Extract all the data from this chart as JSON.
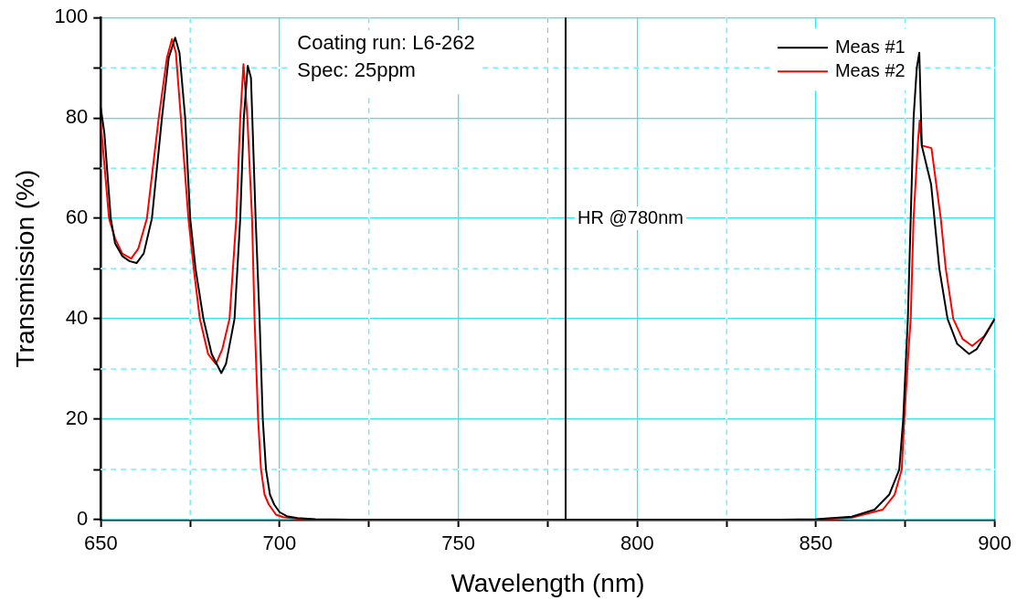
{
  "chart_data": {
    "type": "line",
    "xlabel": "Wavelength (nm)",
    "ylabel": "Transmission (%)",
    "xlim": [
      650,
      900
    ],
    "xticks": [
      650,
      {
        "value": 675,
        "label": null
      },
      700,
      {
        "value": 725,
        "label": null
      },
      750,
      {
        "value": 775,
        "label": null
      },
      800,
      {
        "value": 825,
        "label": null
      },
      850,
      {
        "value": 875,
        "label": null
      },
      900
    ],
    "ylim": [
      0,
      100
    ],
    "yticks": [
      0,
      {
        "value": 10,
        "label": null
      },
      20,
      {
        "value": 30,
        "label": null
      },
      40,
      {
        "value": 50,
        "label": null
      },
      60,
      {
        "value": 70,
        "label": null
      },
      80,
      {
        "value": 90,
        "label": null
      },
      100
    ],
    "grid": true,
    "legend": "top right",
    "marker": "none",
    "line_style": "solid",
    "annotations": [
      "Coating run: L6-262",
      "Spec: 25ppm"
    ],
    "ref_lines": [
      {
        "axis": "x",
        "value": 780,
        "label": "HR @780nm",
        "color": "#000000"
      }
    ],
    "series": [
      {
        "name": "Meas #1",
        "color": "#000000",
        "x": [
          650,
          651,
          652.8,
          654,
          656,
          658,
          660,
          662,
          664.3,
          667.1,
          669,
          670.8,
          672,
          673.6,
          675,
          676.5,
          678.7,
          681,
          683.7,
          685,
          687.4,
          689,
          690,
          691.1,
          692,
          693.3,
          694.4,
          695.3,
          696.2,
          697.3,
          698.5,
          700,
          702,
          705,
          710,
          720,
          750,
          800,
          840,
          850,
          860,
          866.4,
          870.5,
          873.3,
          874.4,
          875.7,
          876.5,
          877.3,
          878.2,
          878.9,
          879.6,
          882.2,
          884.5,
          886.8,
          889.5,
          892.8,
          895,
          898,
          900
        ],
        "values": [
          82,
          77,
          60,
          55,
          52.5,
          51.5,
          51.1,
          53,
          60,
          80,
          92,
          96,
          93,
          80,
          60,
          50,
          40,
          33,
          29.2,
          31,
          40,
          60,
          80,
          90.4,
          88,
          60,
          40,
          20,
          10,
          5,
          3,
          1.5,
          0.7,
          0.3,
          0.1,
          0,
          0,
          0,
          0,
          0.1,
          0.6,
          2,
          5,
          10,
          20,
          40,
          60,
          80,
          90,
          93,
          74.5,
          66.8,
          50,
          40,
          35,
          33,
          34,
          37.5,
          40
        ]
      },
      {
        "name": "Meas #2",
        "color": "#ff0000",
        "x": [
          650,
          652.3,
          654,
          656,
          658.5,
          660.5,
          662.9,
          666.2,
          668.5,
          669.9,
          671,
          672.4,
          674.5,
          676,
          677.7,
          680,
          682.2,
          684,
          686,
          687.9,
          689,
          689.9,
          691,
          692.3,
          693,
          694,
          694.8,
          695.8,
          697,
          699,
          701,
          705,
          710,
          720,
          750,
          800,
          840,
          850,
          860,
          868.7,
          872,
          874,
          874.7,
          876,
          876.5,
          877.3,
          878.5,
          879,
          879.6,
          882.3,
          884.9,
          886.3,
          888.4,
          891,
          893.7,
          897,
          900
        ],
        "values": [
          79,
          60,
          56,
          53,
          52,
          54,
          60,
          80,
          92,
          95.7,
          93,
          80,
          60,
          50,
          40,
          33,
          31,
          34,
          40,
          60,
          80,
          90.7,
          80,
          60,
          40,
          20,
          10,
          5,
          3,
          1,
          0.5,
          0.2,
          0,
          0,
          0,
          0,
          0,
          0,
          0.4,
          2,
          5,
          10,
          20,
          35,
          40,
          60,
          75,
          79.5,
          74.5,
          74,
          60,
          50,
          40,
          36,
          34.6,
          36.5,
          40
        ]
      }
    ]
  }
}
